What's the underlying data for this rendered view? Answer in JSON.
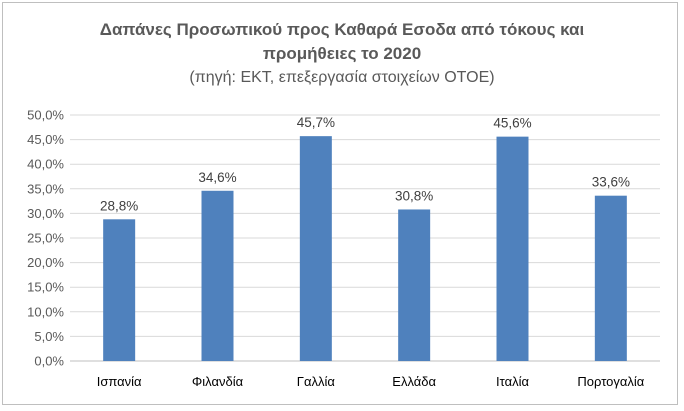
{
  "chart_data": {
    "type": "bar",
    "title_line1": "Δαπάνες Προσωπικού προς Καθαρά Εσοδα από τόκους και",
    "title_line2": "προμήθειες το 2020",
    "subtitle": "(πηγή: ΕΚΤ, επεξεργασία στοιχείων ΟΤΟΕ)",
    "categories": [
      "Ισπανία",
      "Φιλανδία",
      "Γαλλία",
      "Ελλάδα",
      "Ιταλία",
      "Πορτογαλία"
    ],
    "values": [
      28.8,
      34.6,
      45.7,
      30.8,
      45.6,
      33.6
    ],
    "value_labels": [
      "28,8%",
      "34,6%",
      "45,7%",
      "30,8%",
      "45,6%",
      "33,6%"
    ],
    "y_ticks": [
      "0,0%",
      "5,0%",
      "10,0%",
      "15,0%",
      "20,0%",
      "25,0%",
      "30,0%",
      "35,0%",
      "40,0%",
      "45,0%",
      "50,0%"
    ],
    "ylim": [
      0,
      50
    ],
    "grid": true,
    "bar_color": "#4f81bd",
    "grid_color": "#d9d9d9"
  }
}
